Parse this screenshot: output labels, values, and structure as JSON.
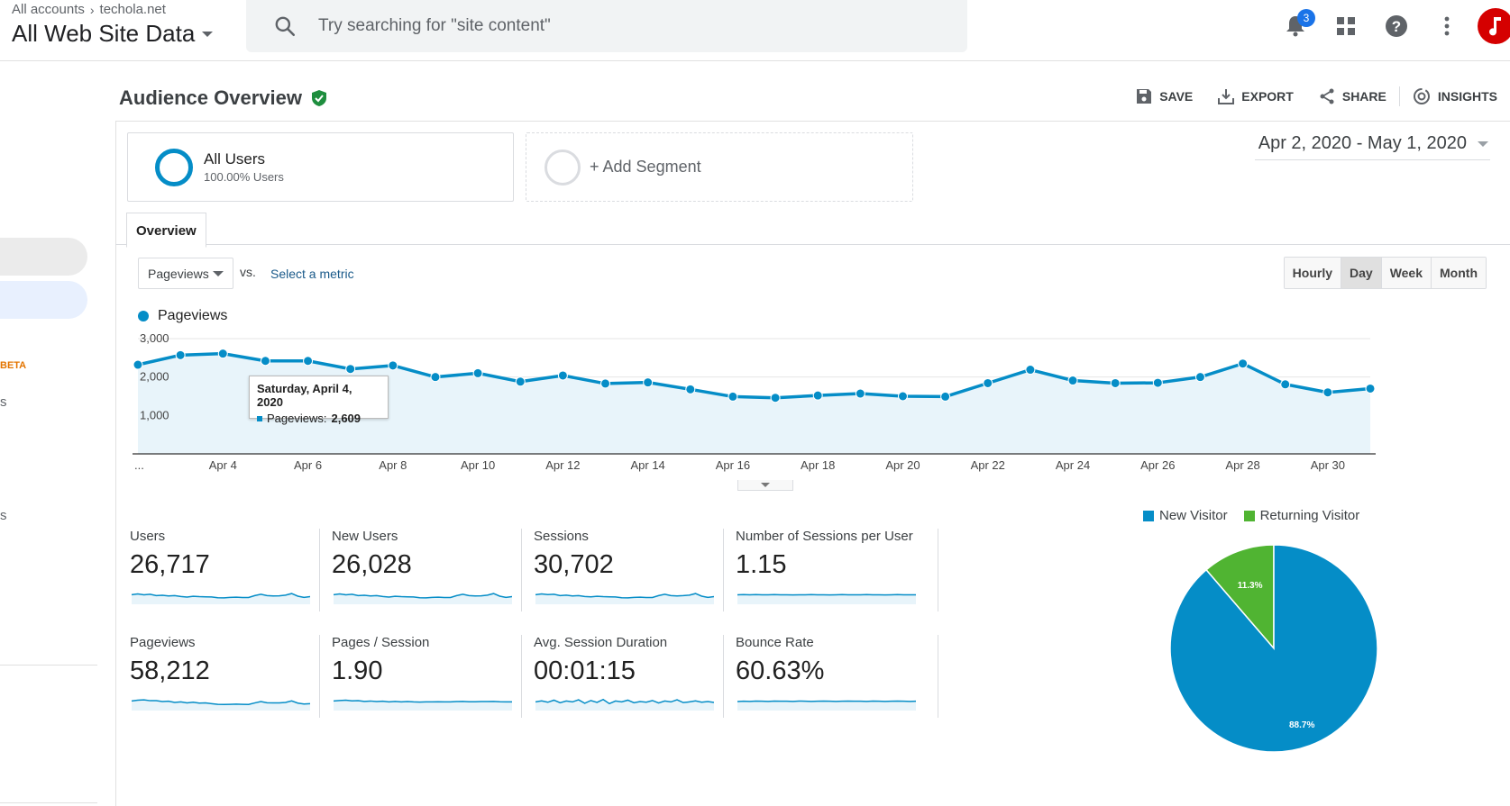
{
  "header": {
    "breadcrumb_root": "All accounts",
    "breadcrumb_account": "techola.net",
    "view_name": "All Web Site Data",
    "search_placeholder": "Try searching for \"site content\"",
    "notification_count": "3"
  },
  "leftnav": {
    "beta_label": "BETA",
    "partial_1": "s",
    "partial_2": "s"
  },
  "report": {
    "title": "Audience Overview",
    "actions": {
      "save": "SAVE",
      "export": "EXPORT",
      "share": "SHARE",
      "insights": "INSIGHTS"
    },
    "segments": {
      "primary_name": "All Users",
      "primary_sub": "100.00% Users",
      "add_label": "+ Add Segment"
    },
    "date_range": "Apr 2, 2020 - May 1, 2020",
    "tab_overview": "Overview",
    "metric_selected": "Pageviews",
    "vs_label": "vs.",
    "select_metric": "Select a metric",
    "granularity": [
      "Hourly",
      "Day",
      "Week",
      "Month"
    ],
    "granularity_active": "Day",
    "legend_label": "Pageviews",
    "tooltip": {
      "title": "Saturday, April 4, 2020",
      "metric": "Pageviews:",
      "value": "2,609"
    }
  },
  "chart_data": {
    "type": "area",
    "title": "",
    "xlabel": "",
    "ylabel": "",
    "ylim": [
      0,
      3000
    ],
    "yticks": [
      "1,000",
      "2,000",
      "3,000"
    ],
    "x_labels": [
      "...",
      "Apr 4",
      "Apr 6",
      "Apr 8",
      "Apr 10",
      "Apr 12",
      "Apr 14",
      "Apr 16",
      "Apr 18",
      "Apr 20",
      "Apr 22",
      "Apr 24",
      "Apr 26",
      "Apr 28",
      "Apr 30"
    ],
    "x": [
      "Apr 2",
      "Apr 3",
      "Apr 4",
      "Apr 5",
      "Apr 6",
      "Apr 7",
      "Apr 8",
      "Apr 9",
      "Apr 10",
      "Apr 11",
      "Apr 12",
      "Apr 13",
      "Apr 14",
      "Apr 15",
      "Apr 16",
      "Apr 17",
      "Apr 18",
      "Apr 19",
      "Apr 20",
      "Apr 21",
      "Apr 22",
      "Apr 23",
      "Apr 24",
      "Apr 25",
      "Apr 26",
      "Apr 27",
      "Apr 28",
      "Apr 29",
      "Apr 30",
      "May 1"
    ],
    "series": [
      {
        "name": "Pageviews",
        "color": "#058dc7",
        "values": [
          2320,
          2570,
          2609,
          2420,
          2420,
          2210,
          2300,
          2000,
          2100,
          1880,
          2040,
          1830,
          1860,
          1680,
          1490,
          1460,
          1520,
          1570,
          1500,
          1490,
          1840,
          2190,
          1910,
          1840,
          1850,
          2000,
          2350,
          1810,
          1600,
          1700
        ]
      }
    ],
    "grid": true
  },
  "scorecards": [
    {
      "name": "Users",
      "value": "26,717",
      "spark": [
        0.55,
        0.6,
        0.55,
        0.58,
        0.5,
        0.52,
        0.48,
        0.5,
        0.45,
        0.42,
        0.46,
        0.44,
        0.43,
        0.42,
        0.38,
        0.37,
        0.4,
        0.41,
        0.39,
        0.39,
        0.5,
        0.58,
        0.5,
        0.48,
        0.49,
        0.53,
        0.62,
        0.47,
        0.4,
        0.44
      ]
    },
    {
      "name": "New Users",
      "value": "26,028",
      "spark": [
        0.55,
        0.6,
        0.55,
        0.58,
        0.5,
        0.52,
        0.48,
        0.5,
        0.45,
        0.42,
        0.46,
        0.44,
        0.43,
        0.42,
        0.38,
        0.37,
        0.4,
        0.41,
        0.39,
        0.39,
        0.5,
        0.58,
        0.5,
        0.48,
        0.49,
        0.53,
        0.62,
        0.47,
        0.4,
        0.44
      ]
    },
    {
      "name": "Sessions",
      "value": "30,702",
      "spark": [
        0.55,
        0.6,
        0.56,
        0.58,
        0.5,
        0.53,
        0.48,
        0.5,
        0.45,
        0.43,
        0.46,
        0.44,
        0.43,
        0.42,
        0.38,
        0.37,
        0.4,
        0.41,
        0.39,
        0.39,
        0.5,
        0.58,
        0.5,
        0.48,
        0.5,
        0.53,
        0.62,
        0.47,
        0.4,
        0.44
      ]
    },
    {
      "name": "Number of Sessions per User",
      "value": "1.15",
      "spark": [
        0.55,
        0.56,
        0.55,
        0.56,
        0.55,
        0.55,
        0.56,
        0.55,
        0.55,
        0.54,
        0.55,
        0.55,
        0.56,
        0.55,
        0.55,
        0.54,
        0.55,
        0.56,
        0.55,
        0.55,
        0.55,
        0.56,
        0.55,
        0.55,
        0.54,
        0.55,
        0.56,
        0.55,
        0.55,
        0.55
      ]
    },
    {
      "name": "Pageviews",
      "value": "58,212",
      "spark": [
        0.55,
        0.6,
        0.62,
        0.57,
        0.57,
        0.52,
        0.54,
        0.47,
        0.5,
        0.44,
        0.48,
        0.43,
        0.44,
        0.4,
        0.36,
        0.35,
        0.36,
        0.37,
        0.36,
        0.35,
        0.44,
        0.52,
        0.45,
        0.44,
        0.44,
        0.47,
        0.56,
        0.43,
        0.38,
        0.4
      ]
    },
    {
      "name": "Pages / Session",
      "value": "1.90",
      "spark": [
        0.55,
        0.58,
        0.6,
        0.56,
        0.57,
        0.53,
        0.55,
        0.52,
        0.54,
        0.5,
        0.53,
        0.5,
        0.52,
        0.5,
        0.49,
        0.5,
        0.5,
        0.51,
        0.5,
        0.5,
        0.52,
        0.53,
        0.51,
        0.51,
        0.52,
        0.52,
        0.53,
        0.51,
        0.5,
        0.5
      ]
    },
    {
      "name": "Avg. Session Duration",
      "value": "00:01:15",
      "spark": [
        0.5,
        0.56,
        0.48,
        0.6,
        0.45,
        0.55,
        0.5,
        0.62,
        0.42,
        0.58,
        0.47,
        0.64,
        0.4,
        0.55,
        0.5,
        0.6,
        0.45,
        0.52,
        0.48,
        0.58,
        0.44,
        0.55,
        0.5,
        0.62,
        0.46,
        0.5,
        0.56,
        0.48,
        0.52,
        0.47
      ]
    },
    {
      "name": "Bounce Rate",
      "value": "60.63%",
      "spark": [
        0.52,
        0.54,
        0.53,
        0.55,
        0.54,
        0.53,
        0.55,
        0.54,
        0.54,
        0.53,
        0.55,
        0.54,
        0.53,
        0.54,
        0.55,
        0.54,
        0.53,
        0.54,
        0.55,
        0.54,
        0.54,
        0.53,
        0.55,
        0.54,
        0.53,
        0.54,
        0.55,
        0.54,
        0.53,
        0.54
      ]
    }
  ],
  "pie_chart": {
    "type": "pie",
    "legend": [
      "New Visitor",
      "Returning Visitor"
    ],
    "slices": [
      {
        "name": "New Visitor",
        "value": 88.7,
        "label": "88.7%",
        "color": "#058dc7"
      },
      {
        "name": "Returning Visitor",
        "value": 11.3,
        "label": "11.3%",
        "color": "#50b432"
      }
    ]
  },
  "colors": {
    "accent": "#058dc7",
    "returning": "#50b432",
    "badge": "#1a73e8",
    "avatar": "#d50000",
    "verified": "#1e8e3e"
  }
}
